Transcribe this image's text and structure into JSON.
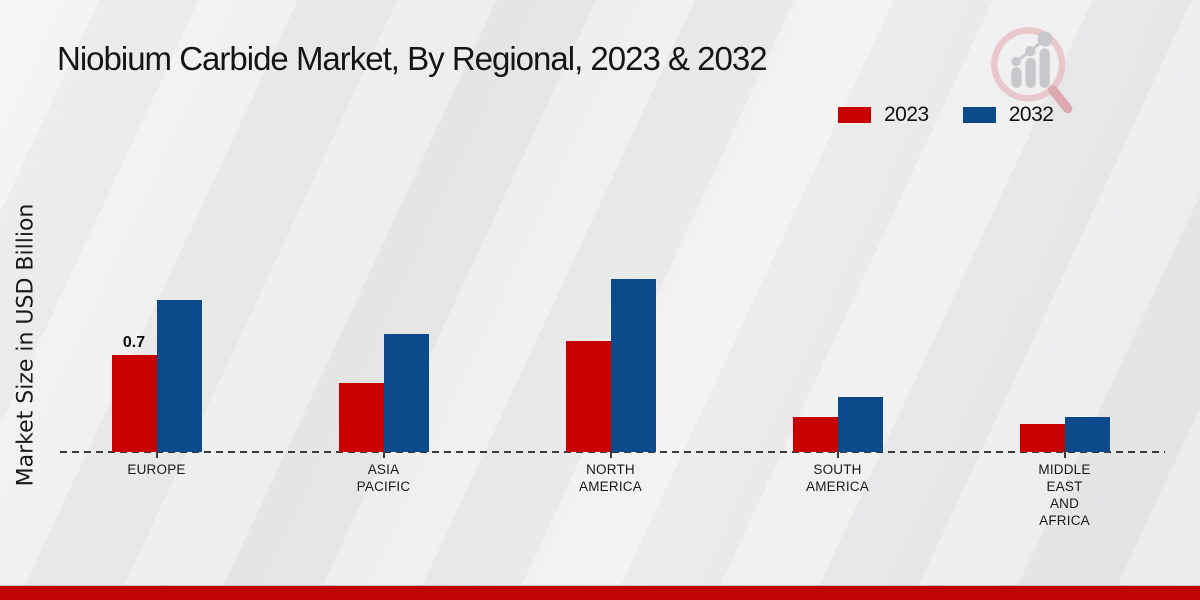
{
  "title": "Niobium Carbide Market, By Regional, 2023 & 2032",
  "ylabel": "Market Size in USD Billion",
  "legend": {
    "items": [
      {
        "label": "2023",
        "color": "#c80101"
      },
      {
        "label": "2032",
        "color": "#0c4a8c"
      }
    ]
  },
  "logo_icon": "magnifier-bar-chart-watermark",
  "colors": {
    "bar_2023": "#c80101",
    "bar_2032": "#0c4a8c",
    "footer_bar": "#c00404",
    "axis": "#3b3b3b",
    "background": "#eaeaeb"
  },
  "chart_data": {
    "type": "bar",
    "categories": [
      "EUROPE",
      "ASIA PACIFIC",
      "NORTH AMERICA",
      "SOUTH AMERICA",
      "MIDDLE EAST AND AFRICA"
    ],
    "category_lines": [
      [
        "EUROPE"
      ],
      [
        "ASIA",
        "PACIFIC"
      ],
      [
        "NORTH",
        "AMERICA"
      ],
      [
        "SOUTH",
        "AMERICA"
      ],
      [
        "MIDDLE",
        "EAST",
        "AND",
        "AFRICA"
      ]
    ],
    "series": [
      {
        "name": "2023",
        "color": "#c80101",
        "values": [
          0.7,
          0.5,
          0.8,
          0.25,
          0.2
        ]
      },
      {
        "name": "2032",
        "color": "#0c4a8c",
        "values": [
          1.1,
          0.85,
          1.25,
          0.4,
          0.25
        ]
      }
    ],
    "data_labels": [
      {
        "category_index": 0,
        "series_index": 0,
        "text": "0.7"
      }
    ],
    "title": "Niobium Carbide Market, By Regional, 2023 & 2032",
    "xlabel": "",
    "ylabel": "Market Size in USD Billion",
    "ylim": [
      0,
      1.4
    ],
    "grid": false,
    "baseline_style": "dashed",
    "legend_position": "top-right"
  }
}
